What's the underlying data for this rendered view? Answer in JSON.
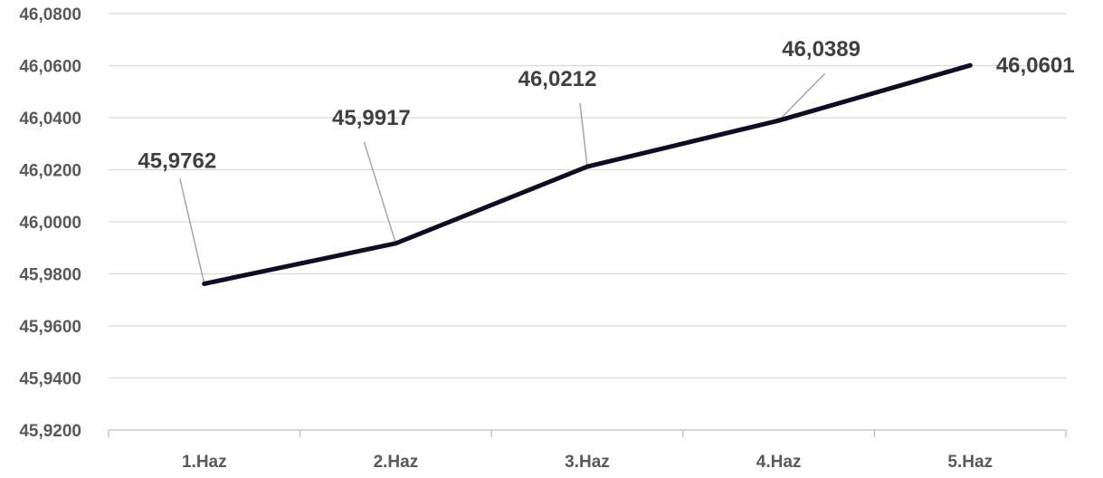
{
  "chart_data": {
    "type": "line",
    "categories": [
      "1.Haz",
      "2.Haz",
      "3.Haz",
      "4.Haz",
      "5.Haz"
    ],
    "series": [
      {
        "values": [
          45.9762,
          45.9917,
          46.0212,
          46.0389,
          46.0601
        ],
        "labels": [
          "45,9762",
          "45,9917",
          "46,0212",
          "46,0389",
          "46,0601"
        ]
      }
    ],
    "ylim": [
      45.92,
      46.08
    ],
    "yticks": [
      45.92,
      45.94,
      45.96,
      45.98,
      46.0,
      46.02,
      46.04,
      46.06,
      46.08
    ],
    "ytick_labels": [
      "45,9200",
      "45,9400",
      "45,9600",
      "45,9800",
      "46,0000",
      "46,0200",
      "46,0400",
      "46,0600",
      "46,0800"
    ],
    "title": "",
    "xlabel": "",
    "ylabel": "",
    "grid": true,
    "legend": "none",
    "colors": {
      "line": "#0d0d26",
      "grid": "#d9d9d9",
      "axis": "#bfbfbf",
      "leader": "#a6a6a6",
      "tick_text": "#595959",
      "label_text": "#404040"
    }
  }
}
